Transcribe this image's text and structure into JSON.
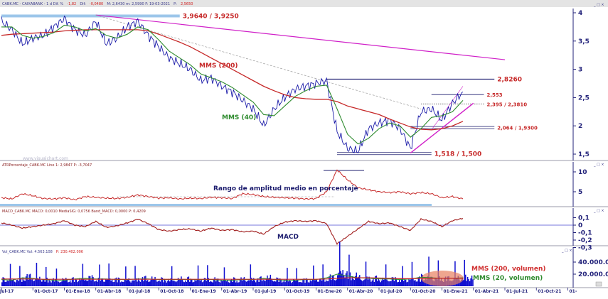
{
  "header": {
    "title": "CABK.MC - CAIXABANK - 1 d  Dif. %",
    "dif_pct": "-1,82",
    "dif_label": "Dif:",
    "dif": "-0,0480",
    "rest": "M: 2,6430  m: 2,5990  F: 19-03-2021",
    "p_label": "P:",
    "p": "2,5650"
  },
  "panel_titles": {
    "atr": "ATRPorcentaje_CABK.MC  Line 1: 2,9847  P: -3,7047",
    "macd": "MACD_CABK.MC  MACD: 0,0010  MediaSIG: 0,0756  Band_MACD: 0,0000  P: 0,4209",
    "volume_name": "Vol_CABK.MC  Vol: 4.563.108",
    "volume_p": "P: 230.402.006"
  },
  "window_controls": "_ □ ×",
  "watermark": "www.visualchart.com",
  "annotations": {
    "mms200": "MMS (200)",
    "mms40": "MMS (40)",
    "atr": "Rango de amplitud medio en porcentaje",
    "macd": "MACD",
    "vol200": "MMS (200, volumen)",
    "vol20": "MMS (20, volumen)"
  },
  "colors": {
    "price": "#1a1aa8",
    "mms200": "#c62828",
    "mms40": "#2e8b2e",
    "trend": "#d020c8",
    "level": "#1c1c6e",
    "band": "#9cc6ea",
    "volume": "#1010d0"
  },
  "chart_data": [
    {
      "type": "line",
      "title": "",
      "x_start": "2017-07",
      "x_end_axis": "2022-01",
      "x_tick_labels": [
        "Jul-17",
        "01-Oct-17",
        "01-Ene-18",
        "01-Abr-18",
        "01-Jul-18",
        "01-Oct-18",
        "01-Ene-19",
        "01-Abr-19",
        "01-Jul-19",
        "01-Oct-19",
        "01-Ene-20",
        "01-Abr-20",
        "01-Jul-20",
        "01-Oct-20",
        "01-Ene-21",
        "01-Abr-21",
        "01-Jul-21",
        "01-Oct-21",
        "01-"
      ],
      "y_tick_labels": [
        "4",
        "3,5",
        "3",
        "2,5",
        "2",
        "1,5"
      ],
      "ylim": [
        1.5,
        4
      ],
      "grid": false,
      "price": [
        3.85,
        3.7,
        3.45,
        3.55,
        3.6,
        3.75,
        3.9,
        3.7,
        3.6,
        3.85,
        3.45,
        3.55,
        3.75,
        3.85,
        3.6,
        3.4,
        3.2,
        3.1,
        3.0,
        2.8,
        2.85,
        2.7,
        2.6,
        2.45,
        2.3,
        2.0,
        2.3,
        2.5,
        2.65,
        2.7,
        2.75,
        2.8,
        1.9,
        1.6,
        1.55,
        1.95,
        2.05,
        2.1,
        1.95,
        1.6,
        2.25,
        2.3,
        2.1,
        2.4,
        2.6
      ],
      "mms40": [
        3.75,
        3.75,
        3.6,
        3.55,
        3.58,
        3.65,
        3.78,
        3.75,
        3.68,
        3.72,
        3.6,
        3.55,
        3.62,
        3.75,
        3.7,
        3.52,
        3.32,
        3.2,
        3.08,
        2.92,
        2.85,
        2.78,
        2.68,
        2.55,
        2.42,
        2.2,
        2.18,
        2.35,
        2.52,
        2.62,
        2.7,
        2.72,
        2.3,
        1.85,
        1.68,
        1.78,
        1.95,
        2.05,
        2.0,
        1.8,
        1.95,
        2.15,
        2.18,
        2.25,
        2.45
      ],
      "mms200": [
        3.6,
        3.62,
        3.63,
        3.64,
        3.65,
        3.66,
        3.68,
        3.69,
        3.7,
        3.7,
        3.7,
        3.7,
        3.7,
        3.7,
        3.68,
        3.62,
        3.55,
        3.48,
        3.4,
        3.3,
        3.2,
        3.1,
        3.0,
        2.9,
        2.8,
        2.7,
        2.62,
        2.55,
        2.5,
        2.48,
        2.47,
        2.47,
        2.43,
        2.35,
        2.3,
        2.25,
        2.2,
        2.12,
        2.05,
        1.98,
        1.94,
        1.93,
        1.95,
        2.0,
        2.08
      ],
      "levels": [
        {
          "label": "3,9640 / 3,9250",
          "value": 3.944,
          "from": "2017-07",
          "to": "2018-12",
          "style": "band"
        },
        {
          "label": "2,8260",
          "value": 2.826,
          "from": "2020-02",
          "to": "2021-06",
          "style": "solid"
        },
        {
          "label": "2,553",
          "value": 2.553,
          "from": "2020-12",
          "to": "2021-05",
          "style": "solid"
        },
        {
          "label": "2,395 / 2,3810",
          "value": 2.388,
          "from": "2020-11",
          "to": "2021-05",
          "style": "dotted"
        },
        {
          "label": "2,064 / 1,9300",
          "value": 1.97,
          "from": "2020-10",
          "to": "2021-06",
          "style": "double"
        },
        {
          "label": "1,518 / 1,500",
          "value": 1.509,
          "from": "2020-03",
          "to": "2020-12",
          "style": "double"
        }
      ],
      "trendlines": [
        {
          "from": [
            "2018-04",
            3.96
          ],
          "to": [
            "2021-07",
            3.17
          ],
          "style": "resistance"
        },
        {
          "from": [
            "2018-04",
            3.96
          ],
          "to": [
            "2020-11",
            2.3
          ],
          "style": "dashed"
        },
        {
          "from": [
            "2020-10",
            1.52
          ],
          "to": [
            "2021-04",
            2.4
          ],
          "style": "support"
        },
        {
          "from": [
            "2020-12",
            1.93
          ],
          "to": [
            "2021-03",
            2.7
          ],
          "style": "support-thin"
        }
      ]
    },
    {
      "type": "line",
      "title": "",
      "y_tick_labels": [
        "10",
        "5"
      ],
      "values": [
        3.5,
        3.2,
        4.5,
        4.0,
        3.3,
        3.2,
        3.5,
        3.0,
        3.8,
        3.6,
        3.4,
        3.3,
        3.6,
        4.2,
        3.8,
        3.4,
        3.5,
        3.2,
        3.4,
        3.3,
        3.6,
        3.5,
        3.3,
        4.5,
        4.3,
        3.8,
        3.6,
        3.5,
        3.4,
        3.2,
        3.3,
        5.0,
        10.5,
        8.0,
        6.0,
        5.5,
        5.0,
        4.8,
        5.0,
        4.5,
        4.8,
        4.5,
        3.5,
        3.8,
        3.2
      ]
    },
    {
      "type": "line",
      "title": "",
      "y_tick_labels": [
        "0,1",
        "0",
        "-0,1",
        "-0,2",
        "-0,3"
      ],
      "macd": [
        0.03,
        0.0,
        -0.04,
        -0.02,
        0.0,
        0.02,
        0.06,
        0.0,
        -0.02,
        0.05,
        -0.03,
        -0.01,
        0.03,
        0.08,
        0.02,
        -0.06,
        -0.08,
        -0.06,
        -0.05,
        -0.08,
        -0.04,
        -0.07,
        -0.06,
        -0.09,
        -0.08,
        -0.12,
        -0.02,
        0.04,
        0.06,
        0.05,
        0.06,
        0.02,
        -0.25,
        -0.15,
        -0.05,
        0.05,
        0.02,
        0.03,
        -0.02,
        -0.07,
        0.08,
        0.05,
        -0.02,
        0.06,
        0.09
      ]
    },
    {
      "type": "bar",
      "title": "",
      "y_tick_labels": [
        "40.000.00",
        "20.000.00"
      ],
      "unit": "millions",
      "volume": [
        12,
        11,
        16,
        13,
        11,
        10,
        11,
        12,
        14,
        12,
        12,
        11,
        11,
        13,
        12,
        11,
        11,
        12,
        11,
        12,
        11,
        10,
        11,
        12,
        12,
        14,
        11,
        10,
        10,
        11,
        12,
        15,
        24,
        18,
        14,
        13,
        12,
        12,
        11,
        13,
        16,
        14,
        13,
        14,
        15
      ],
      "vol_mms200": [
        12,
        12,
        12,
        12,
        11.5,
        11.5,
        11.5,
        11.5,
        11.5,
        11.5,
        11.5,
        11.5,
        11.5,
        11.5,
        11.5,
        11.5,
        11.5,
        11.5,
        11.5,
        11.5,
        11.5,
        11.5,
        11.5,
        11.5,
        11.5,
        11.5,
        11.5,
        11.5,
        11.5,
        11.5,
        11.5,
        12,
        13,
        14,
        14,
        14,
        13.5,
        13,
        12.5,
        12.5,
        13,
        13,
        13,
        13,
        13
      ],
      "vol_mms20": [
        11,
        10,
        14,
        13,
        11,
        10,
        10,
        12,
        13,
        12,
        12,
        11,
        11,
        12,
        12,
        11,
        11,
        11,
        11,
        11,
        11,
        10,
        10,
        11,
        11,
        13,
        11,
        10,
        10,
        11,
        11,
        14,
        20,
        17,
        14,
        13,
        12,
        12,
        11,
        12,
        15,
        14,
        13,
        13,
        14
      ]
    }
  ]
}
